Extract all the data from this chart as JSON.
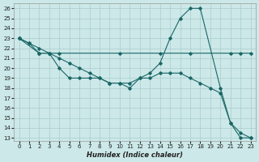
{
  "background_color": "#cce8e8",
  "grid_color": "#aacccc",
  "line_color": "#1a6666",
  "xlabel": "Humidex (Indice chaleur)",
  "xlim_min": -0.5,
  "xlim_max": 23.5,
  "ylim_min": 12.7,
  "ylim_max": 26.5,
  "xticks": [
    0,
    1,
    2,
    3,
    4,
    5,
    6,
    7,
    8,
    9,
    10,
    11,
    12,
    13,
    14,
    15,
    16,
    17,
    18,
    19,
    20,
    21,
    22,
    23
  ],
  "yticks": [
    13,
    14,
    15,
    16,
    17,
    18,
    19,
    20,
    21,
    22,
    23,
    24,
    25,
    26
  ],
  "line_curvy_x": [
    0,
    1,
    2,
    3,
    4,
    5,
    6,
    7,
    8,
    9,
    10,
    11,
    12,
    13,
    14,
    15,
    16,
    17,
    18,
    20,
    21,
    22,
    23
  ],
  "line_curvy_y": [
    23,
    22.5,
    21.5,
    21.5,
    20.0,
    19.0,
    19.0,
    19.0,
    19.0,
    18.5,
    18.5,
    18.0,
    19.0,
    19.5,
    20.5,
    23.0,
    25.0,
    26.0,
    26.0,
    18.0,
    14.5,
    13.0,
    13.0
  ],
  "line_flat_x": [
    0,
    2,
    3,
    4,
    10,
    14,
    17,
    21,
    22,
    23
  ],
  "line_flat_y": [
    23,
    21.5,
    21.5,
    21.5,
    21.5,
    21.5,
    21.5,
    21.5,
    21.5,
    21.5
  ],
  "line_diag_x": [
    0,
    1,
    2,
    3,
    4,
    5,
    6,
    7,
    8,
    9,
    10,
    11,
    12,
    13,
    14,
    15,
    16,
    17,
    18,
    19,
    20,
    21,
    22,
    23
  ],
  "line_diag_y": [
    23,
    22.5,
    22.0,
    21.5,
    21.0,
    20.5,
    20.0,
    19.5,
    19.0,
    18.5,
    18.5,
    18.5,
    19.0,
    19.0,
    19.5,
    19.5,
    19.5,
    19.0,
    18.5,
    18.0,
    17.5,
    14.5,
    13.5,
    13.0
  ]
}
